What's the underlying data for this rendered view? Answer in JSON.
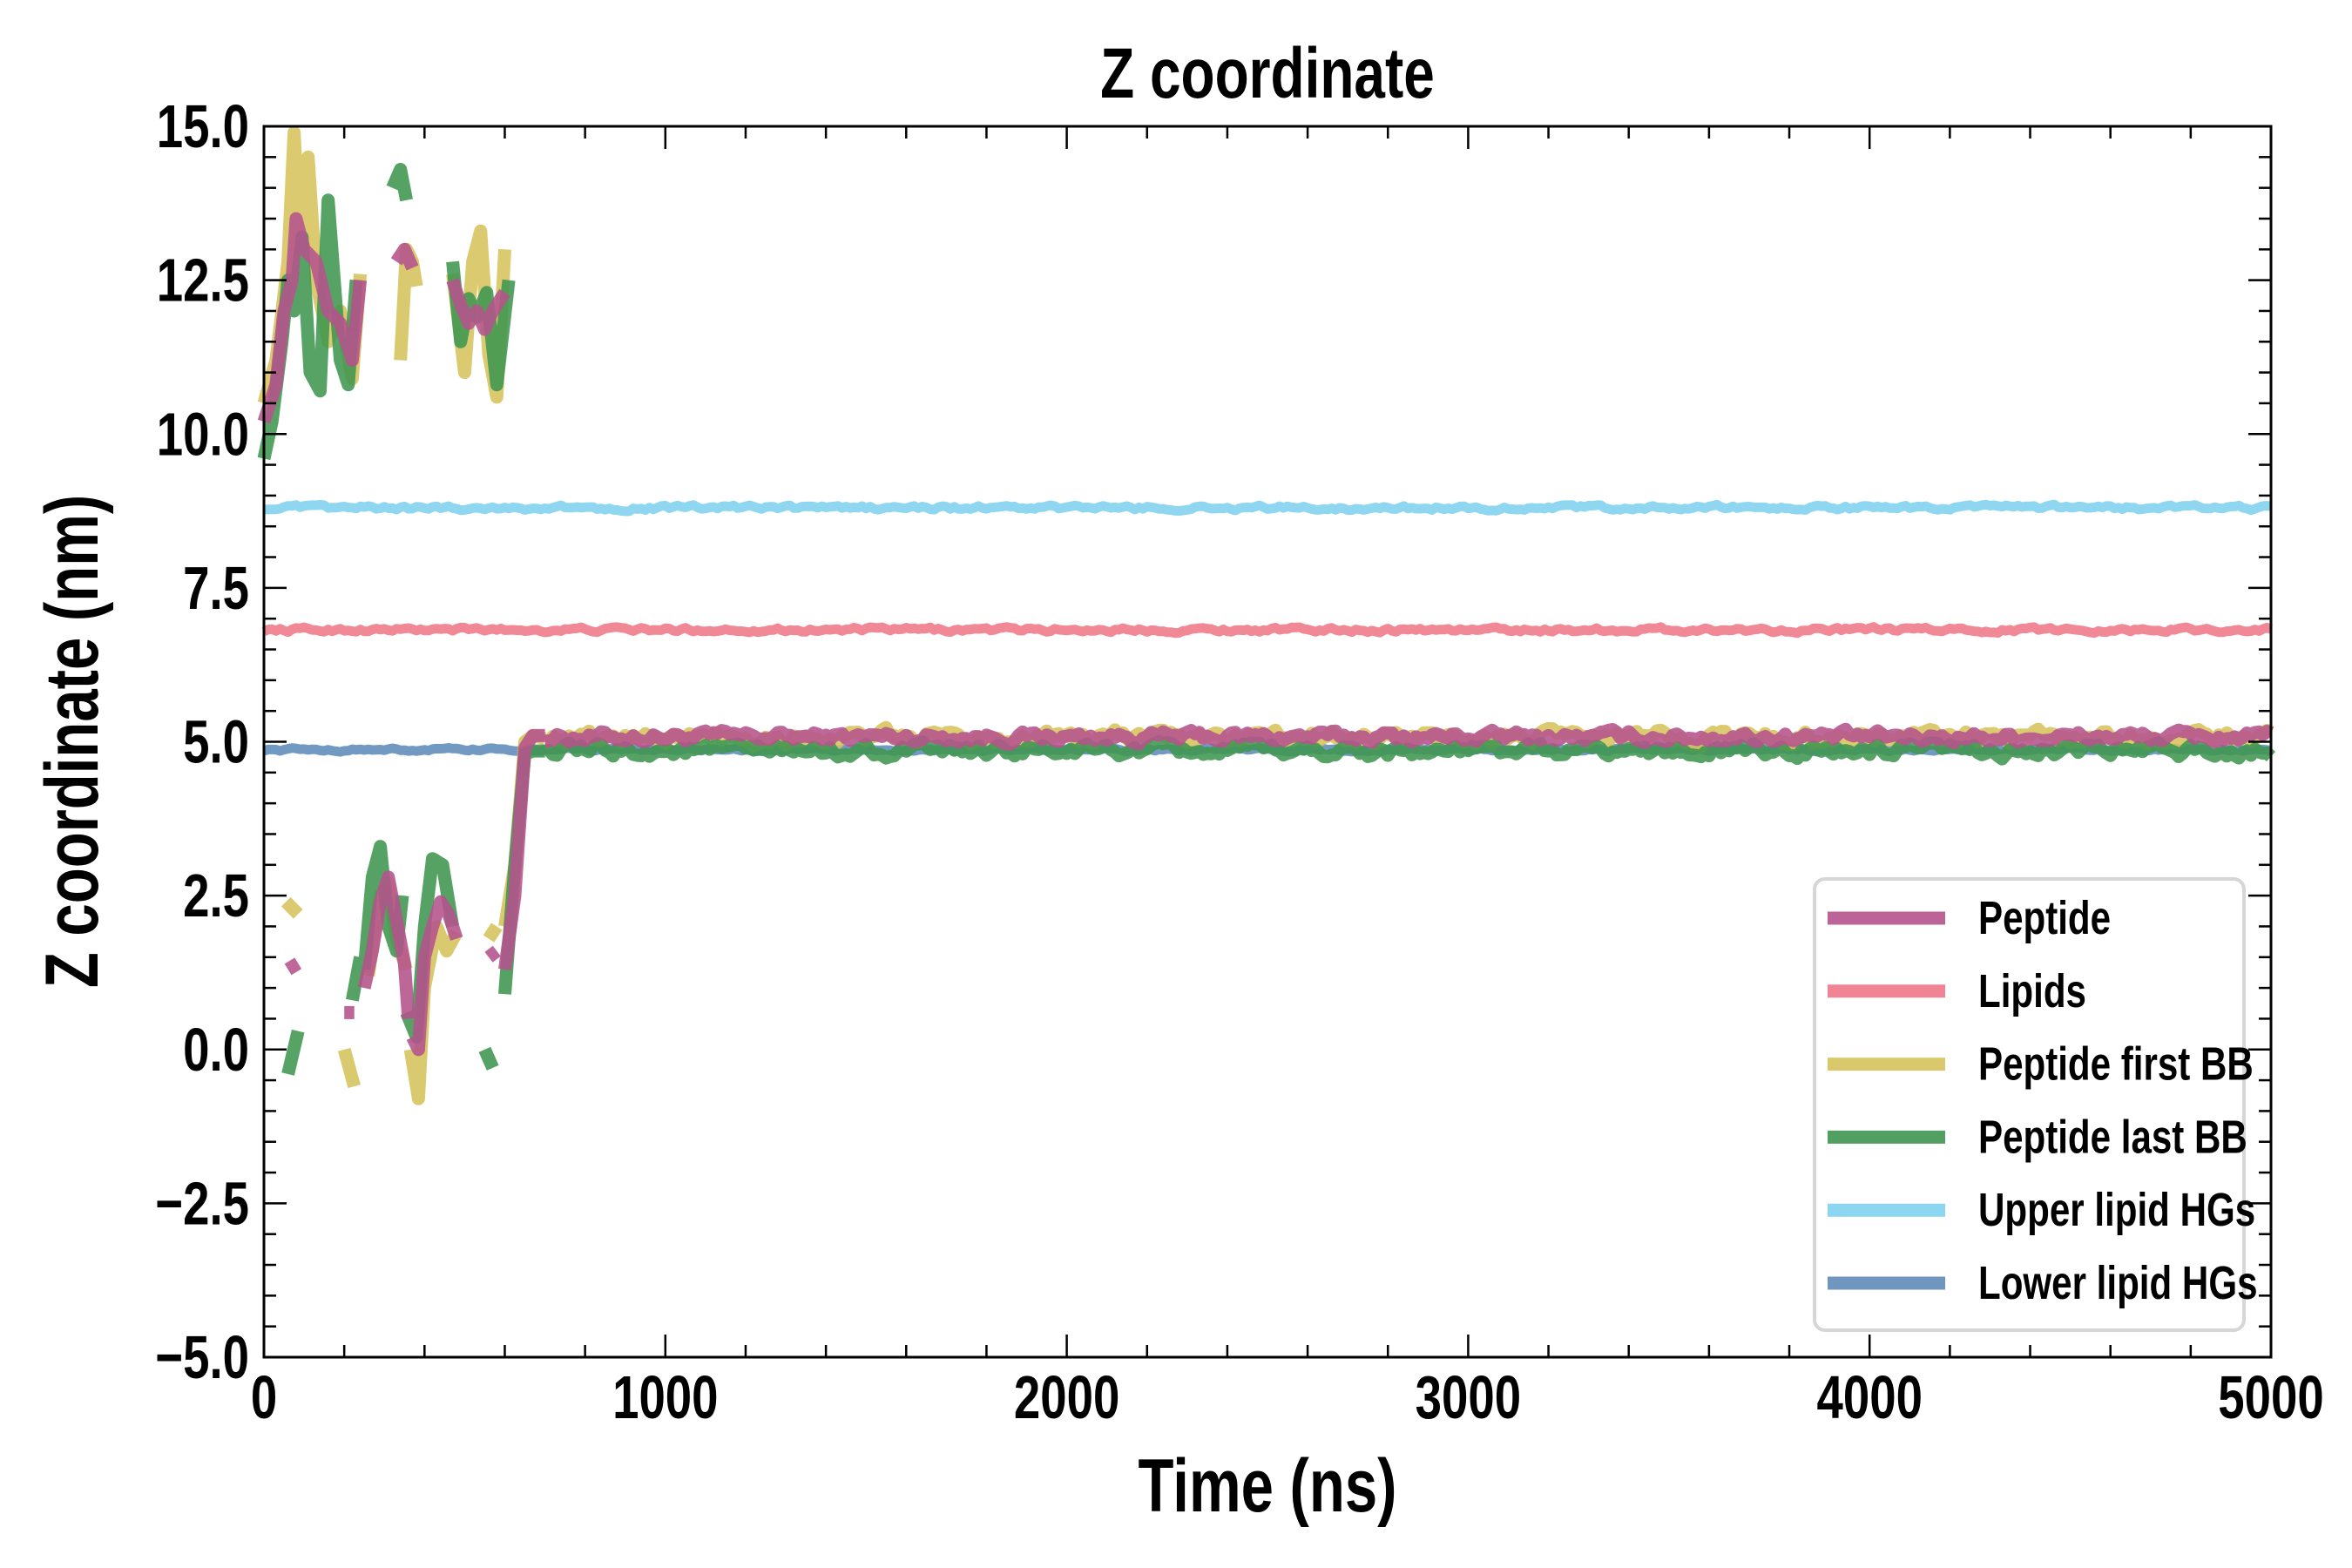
{
  "chart_data": {
    "type": "line",
    "title": "Z coordinate",
    "xlabel": "Time (ns)",
    "ylabel": "Z coordinate (nm)",
    "xlim": [
      0,
      5000
    ],
    "ylim": [
      -5.0,
      15.0
    ],
    "xticks": [
      0,
      1000,
      2000,
      3000,
      4000,
      5000
    ],
    "xtick_labels": [
      "0",
      "1000",
      "2000",
      "3000",
      "4000",
      "5000"
    ],
    "yticks": [
      -5.0,
      -2.5,
      0.0,
      2.5,
      5.0,
      7.5,
      10.0,
      12.5,
      15.0
    ],
    "ytick_labels": [
      "−5.0",
      "−2.5",
      "0.0",
      "2.5",
      "5.0",
      "7.5",
      "10.0",
      "12.5",
      "15.0"
    ],
    "grid": false,
    "legend_position": "lower-right",
    "series": [
      {
        "name": "Peptide",
        "color": "#b5538c",
        "segments": [
          [
            [
              0,
              10.2
            ],
            [
              30,
              10.8
            ],
            [
              50,
              12.0
            ],
            [
              70,
              12.5
            ],
            [
              80,
              13.5
            ],
            [
              100,
              13.0
            ],
            [
              130,
              12.8
            ],
            [
              160,
              12.0
            ],
            [
              190,
              11.8
            ],
            [
              220,
              11.2
            ],
            [
              240,
              12.5
            ]
          ],
          [
            [
              60,
              1.3
            ],
            [
              85,
              1.4
            ]
          ],
          [
            [
              200,
              0.6
            ],
            [
              225,
              0.6
            ]
          ],
          [
            [
              250,
              1.0
            ],
            [
              270,
              1.6
            ],
            [
              290,
              2.4
            ],
            [
              310,
              2.8
            ],
            [
              330,
              2.1
            ],
            [
              350,
              1.4
            ],
            [
              360,
              0.5
            ]
          ],
          [
            [
              330,
              12.8
            ],
            [
              350,
              13.0
            ],
            [
              370,
              12.7
            ]
          ],
          [
            [
              370,
              0.2
            ],
            [
              385,
              0.0
            ],
            [
              400,
              1.5
            ],
            [
              420,
              2.0
            ],
            [
              440,
              2.4
            ],
            [
              460,
              2.2
            ],
            [
              480,
              1.8
            ]
          ],
          [
            [
              470,
              12.5
            ],
            [
              490,
              12.1
            ],
            [
              510,
              11.8
            ],
            [
              530,
              12.0
            ],
            [
              550,
              11.7
            ],
            [
              570,
              12.0
            ],
            [
              600,
              12.3
            ]
          ],
          [
            [
              560,
              1.5
            ],
            [
              580,
              1.6
            ]
          ],
          [
            [
              600,
              1.3
            ],
            [
              625,
              2.5
            ],
            [
              650,
              4.9
            ],
            [
              670,
              5.1
            ],
            [
              700,
              5.1
            ]
          ]
        ],
        "stable": {
          "from": 700,
          "to": 5000,
          "mean": 5.08,
          "jitter": 0.07
        }
      },
      {
        "name": "Lipids",
        "color": "#ee7788",
        "segments": [],
        "stable": {
          "from": 0,
          "to": 5000,
          "mean": 6.82,
          "jitter": 0.03
        }
      },
      {
        "name": "Peptide first BB",
        "color": "#d6c35c",
        "segments": [
          [
            [
              0,
              10.5
            ],
            [
              30,
              11.2
            ],
            [
              60,
              12.8
            ],
            [
              75,
              14.9
            ],
            [
              90,
              13.0
            ],
            [
              110,
              14.5
            ],
            [
              130,
              12.5
            ],
            [
              160,
              11.5
            ],
            [
              190,
              12.0
            ],
            [
              220,
              10.9
            ],
            [
              240,
              12.6
            ]
          ],
          [
            [
              55,
              2.4
            ],
            [
              85,
              2.2
            ]
          ],
          [
            [
              200,
              0.0
            ],
            [
              225,
              -0.6
            ]
          ],
          [
            [
              260,
              1.2
            ],
            [
              290,
              2.5
            ],
            [
              310,
              2.7
            ],
            [
              330,
              1.8
            ],
            [
              355,
              1.3
            ]
          ],
          [
            [
              340,
              11.2
            ],
            [
              355,
              13.0
            ],
            [
              370,
              12.8
            ],
            [
              380,
              12.4
            ]
          ],
          [
            [
              365,
              0.0
            ],
            [
              385,
              -0.8
            ],
            [
              400,
              1.0
            ],
            [
              430,
              2.0
            ],
            [
              455,
              1.6
            ],
            [
              480,
              1.9
            ]
          ],
          [
            [
              470,
              12.6
            ],
            [
              500,
              11.0
            ],
            [
              520,
              12.8
            ],
            [
              540,
              13.3
            ],
            [
              560,
              11.3
            ],
            [
              580,
              10.6
            ],
            [
              600,
              13.0
            ]
          ],
          [
            [
              560,
              1.8
            ],
            [
              580,
              2.0
            ]
          ],
          [
            [
              600,
              2.0
            ],
            [
              625,
              3.0
            ],
            [
              650,
              5.0
            ],
            [
              670,
              5.1
            ],
            [
              700,
              5.05
            ]
          ]
        ],
        "stable": {
          "from": 700,
          "to": 5000,
          "mean": 5.07,
          "jitter": 0.09
        }
      },
      {
        "name": "Peptide last BB",
        "color": "#3f9650",
        "segments": [
          [
            [
              0,
              9.6
            ],
            [
              20,
              10.2
            ],
            [
              45,
              11.5
            ],
            [
              60,
              12.5
            ],
            [
              75,
              12.0
            ],
            [
              95,
              13.2
            ],
            [
              115,
              11.0
            ],
            [
              140,
              10.7
            ],
            [
              160,
              13.8
            ],
            [
              190,
              11.2
            ],
            [
              210,
              10.8
            ],
            [
              230,
              12.5
            ]
          ],
          [
            [
              60,
              -0.4
            ],
            [
              85,
              0.3
            ]
          ],
          [
            [
              220,
              0.8
            ],
            [
              240,
              1.5
            ]
          ],
          [
            [
              250,
              1.3
            ],
            [
              270,
              2.8
            ],
            [
              290,
              3.3
            ],
            [
              310,
              2.0
            ],
            [
              330,
              1.6
            ],
            [
              345,
              2.5
            ]
          ],
          [
            [
              320,
              14.0
            ],
            [
              340,
              14.3
            ],
            [
              355,
              13.8
            ]
          ],
          [
            [
              355,
              0.6
            ],
            [
              380,
              0.2
            ],
            [
              400,
              2.0
            ],
            [
              420,
              3.1
            ],
            [
              445,
              3.0
            ],
            [
              470,
              2.0
            ]
          ],
          [
            [
              470,
              12.8
            ],
            [
              490,
              11.5
            ],
            [
              510,
              12.2
            ],
            [
              530,
              11.9
            ],
            [
              555,
              12.3
            ],
            [
              580,
              10.8
            ],
            [
              610,
              12.5
            ]
          ],
          [
            [
              550,
              0.0
            ],
            [
              570,
              -0.3
            ]
          ],
          [
            [
              600,
              0.9
            ],
            [
              625,
              3.0
            ],
            [
              650,
              4.8
            ],
            [
              670,
              4.85
            ],
            [
              700,
              4.85
            ]
          ]
        ],
        "stable": {
          "from": 700,
          "to": 5000,
          "mean": 4.85,
          "jitter": 0.08
        }
      },
      {
        "name": "Upper lipid HGs",
        "color": "#7fd1ef",
        "segments": [],
        "stable": {
          "from": 0,
          "to": 5000,
          "mean": 8.8,
          "jitter": 0.03
        }
      },
      {
        "name": "Lower lipid HGs",
        "color": "#5f8bb8",
        "segments": [],
        "stable": {
          "from": 0,
          "to": 5000,
          "mean": 4.87,
          "jitter": 0.02
        }
      }
    ]
  }
}
